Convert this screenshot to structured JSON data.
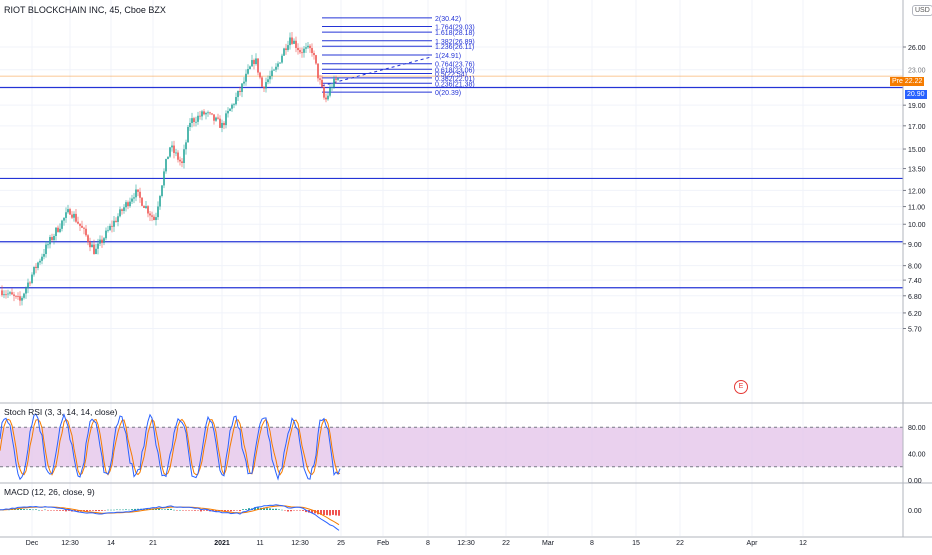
{
  "header": {
    "symbol_title": "RIOT BLOCKCHAIN INC, 45, Cboe BZX",
    "currency_label": "USD"
  },
  "price_axis": {
    "labels": [
      "26.00",
      "23.00",
      "20.90",
      "19.00",
      "17.00",
      "15.00",
      "13.50",
      "12.00",
      "11.00",
      "10.00",
      "9.00",
      "8.00",
      "7.40",
      "6.80",
      "6.20",
      "5.70"
    ],
    "label_prices": [
      26,
      23,
      20.9,
      19,
      17,
      15,
      13.5,
      12,
      11,
      10,
      9,
      8,
      7.4,
      6.8,
      6.2,
      5.7
    ],
    "scale": "log",
    "current_tag": {
      "prefix": "Pre",
      "value": "22.22",
      "color": "#f57c00"
    },
    "line_tag": {
      "value": "20.90",
      "color": "#2962ff"
    }
  },
  "horizontal_levels": {
    "prices": [
      20.9,
      12.8,
      9.1,
      7.1
    ],
    "color": "#2434d6"
  },
  "fibonacci": {
    "color": "#2434d6",
    "labels": [
      "2(30.42)",
      "1.764(29.03)",
      "1.618(28.18)",
      "1.382(26.89)",
      "1.236(26.11)",
      "1(24.91)",
      "0.764(23.76)",
      "0.618(23.06)",
      "0.5(22.54)",
      "0.382(22.01)",
      "0.236(21.38)",
      "0(20.39)"
    ],
    "prices": [
      30.42,
      29.03,
      28.18,
      26.89,
      26.11,
      24.91,
      23.76,
      23.06,
      22.54,
      22.01,
      21.38,
      20.39
    ]
  },
  "stoch_rsi": {
    "title": "Stoch RSI (3, 3, 14, 14, close)",
    "axis_labels": [
      "80.00",
      "40.00",
      "0.00"
    ],
    "axis_values": [
      80,
      40,
      0
    ],
    "bands": [
      80,
      20
    ],
    "k_color": "#2962ff",
    "d_color": "#f57c00",
    "band_fill": "#e1bee7"
  },
  "macd": {
    "title": "MACD (12, 26, close, 9)",
    "axis_labels": [
      "0.00"
    ],
    "axis_values": [
      0
    ],
    "macd_color": "#2962ff",
    "signal_color": "#f57c00",
    "hist_up": "#26a69a",
    "hist_down": "#ef5350"
  },
  "time_axis": {
    "labels": [
      "Dec",
      "12:30",
      "14",
      "21",
      "2021",
      "11",
      "12:30",
      "25",
      "Feb",
      "8",
      "12:30",
      "22",
      "Mar",
      "8",
      "15",
      "22",
      "Apr",
      "12"
    ]
  },
  "earnings_marker": "E",
  "colors": {
    "up": "#26a69a",
    "down": "#ef5350"
  }
}
